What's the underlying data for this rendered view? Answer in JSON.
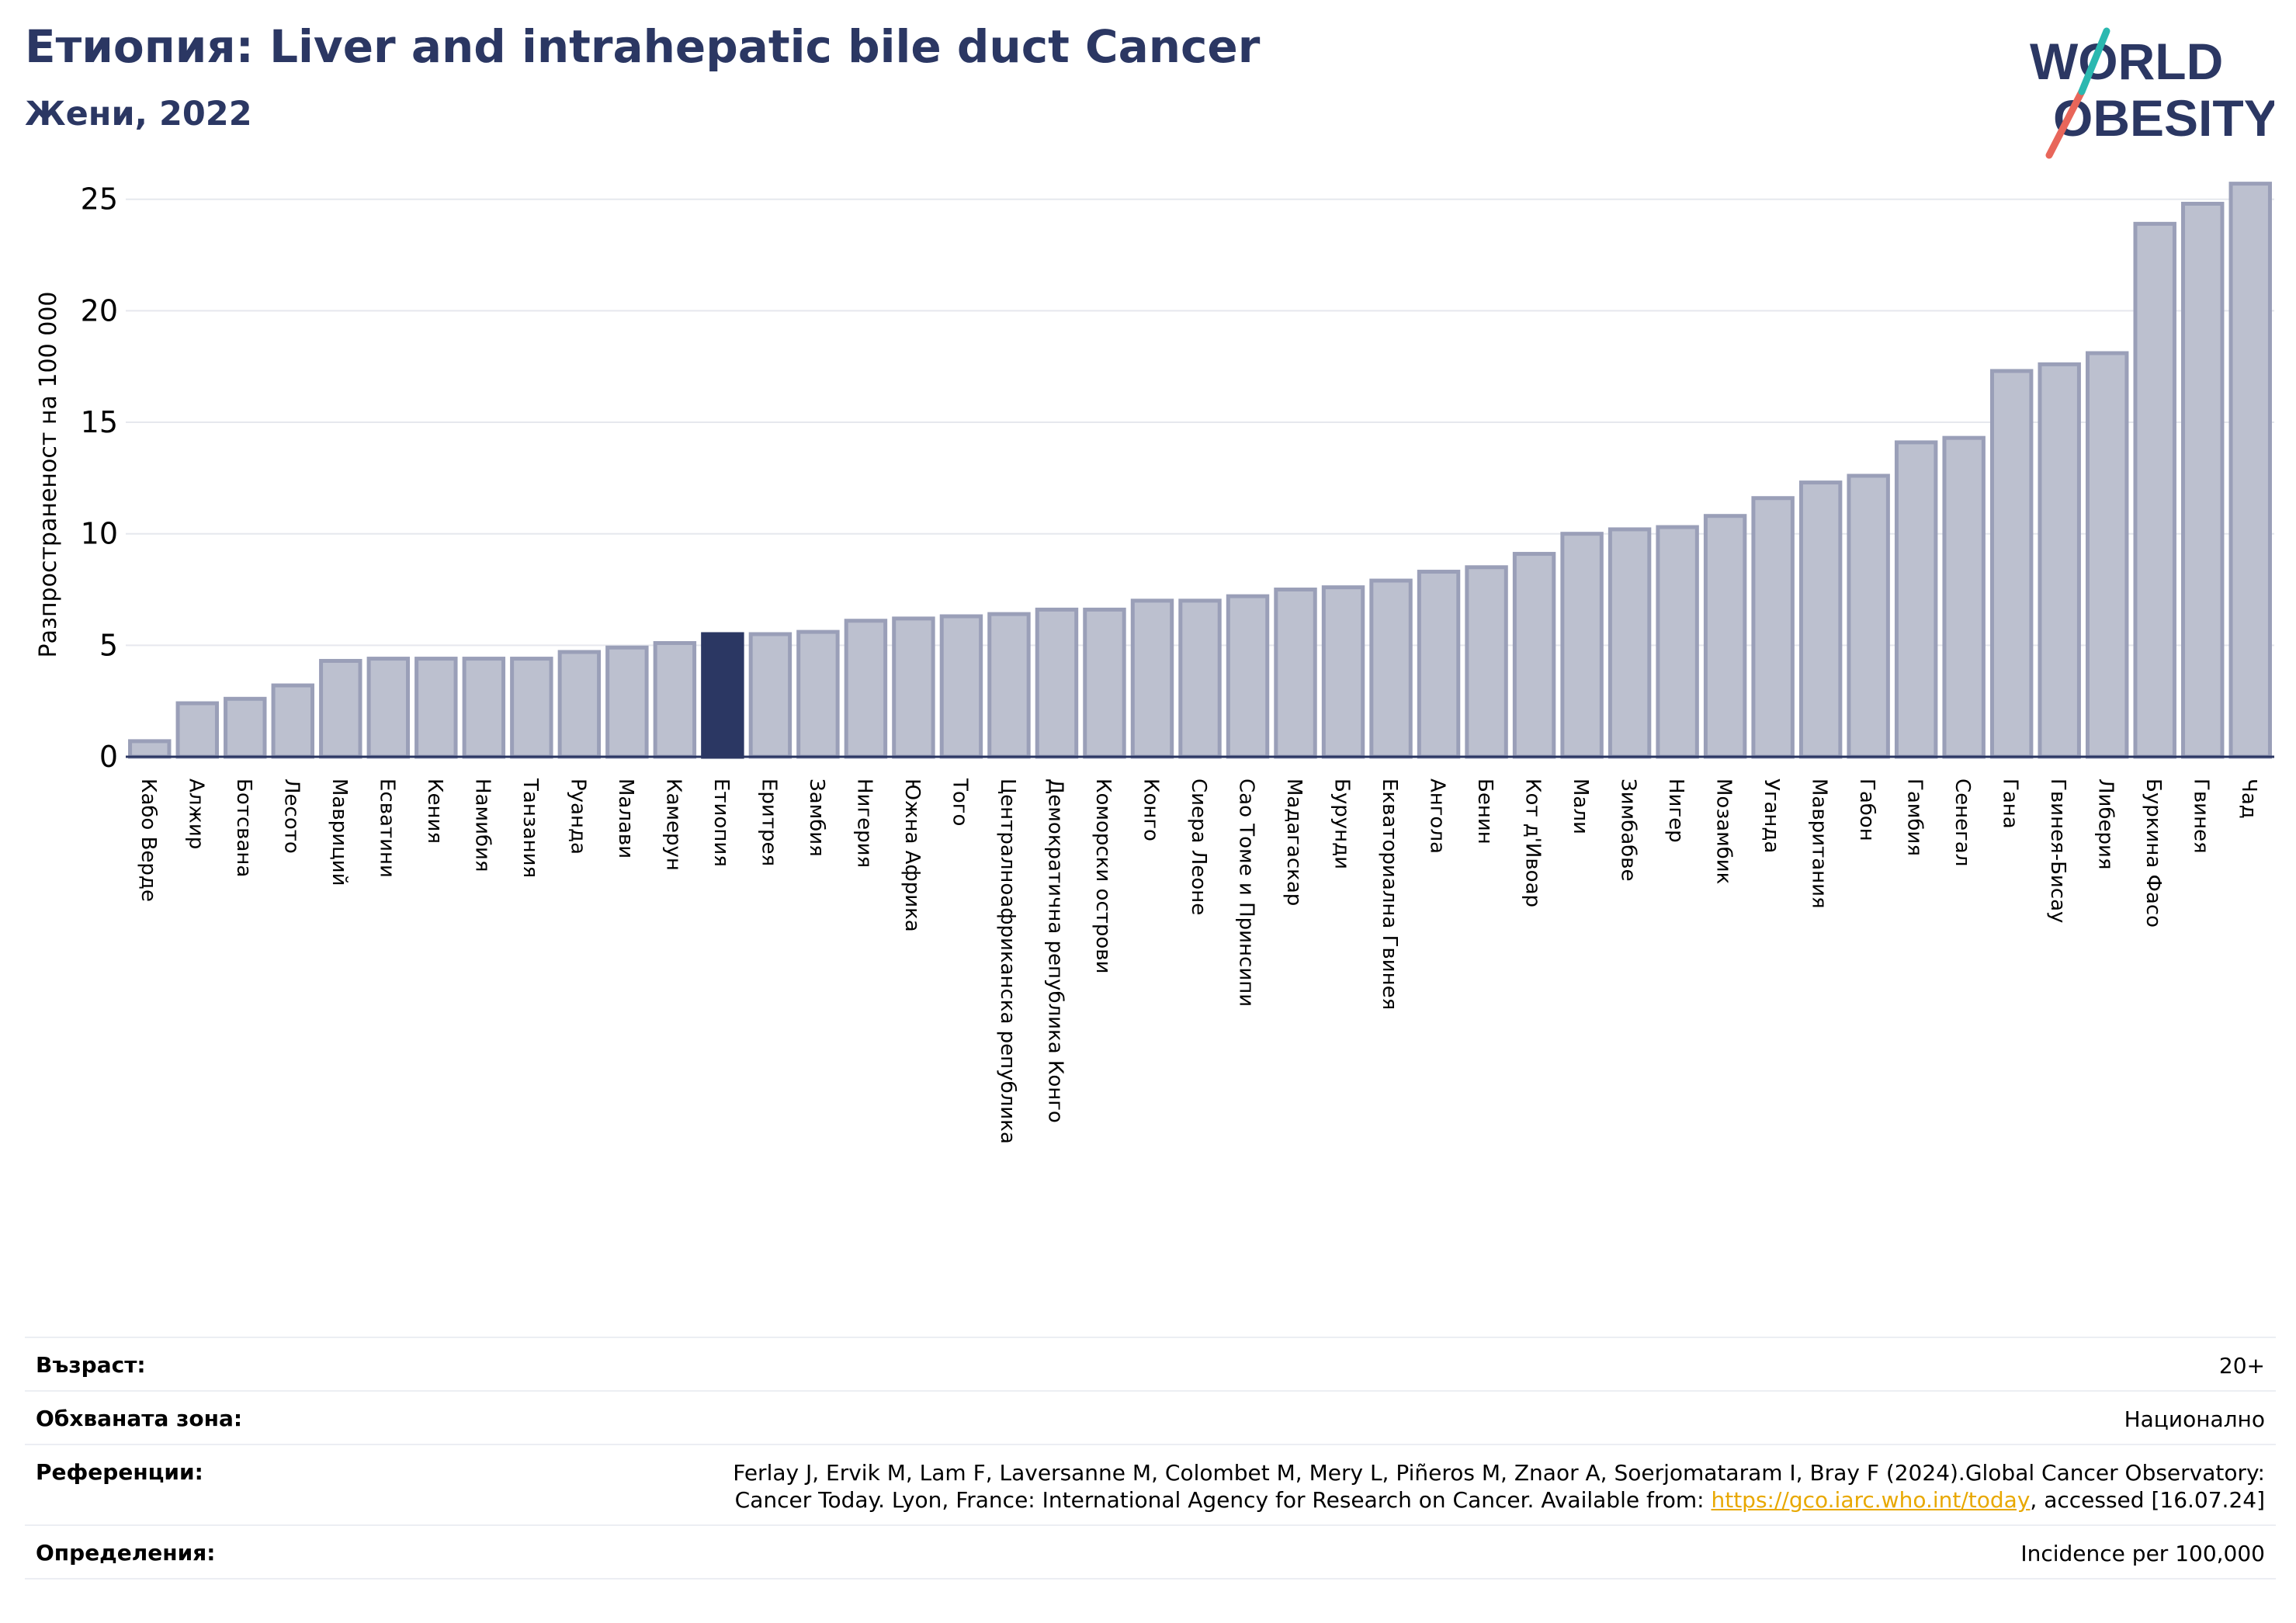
{
  "header": {
    "title": "Етиопия: Liver and intrahepatic bile duct Cancer",
    "subtitle": "Жени, 2022",
    "logo_line1": "WORLD",
    "logo_line2": "OBESITY"
  },
  "colors": {
    "bar": "#bcc0cf",
    "bar_edge": "#9a9fb8",
    "highlight": "#2b3763",
    "title": "#2b3763",
    "link": "#e8a800"
  },
  "chart_data": {
    "type": "bar",
    "ylabel": "Разпространеност  на 100 000",
    "ylim": [
      0,
      26
    ],
    "yticks": [
      0,
      5,
      10,
      15,
      20,
      25
    ],
    "grid": true,
    "highlight": "Етиопия",
    "categories": [
      "Кабо Верде",
      "Алжир",
      "Ботсвана",
      "Лесото",
      "Мавриций",
      "Есватини",
      "Кения",
      "Намибия",
      "Танзания",
      "Руанда",
      "Малави",
      "Камерун",
      "Етиопия",
      "Еритрея",
      "Замбия",
      "Нигерия",
      "Южна Африка",
      "Того",
      "Централноафриканска република",
      "Демократична република Конго",
      "Коморски острови",
      "Конго",
      "Сиера Леоне",
      "Сао Томе и Принсипи",
      "Мадагаскар",
      "Бурунди",
      "Екваториална Гвинея",
      "Ангола",
      "Бенин",
      "Кот д'Ивоар",
      "Мали",
      "Зимбабве",
      "Нигер",
      "Мозамбик",
      "Уганда",
      "Мавритания",
      "Габон",
      "Гамбия",
      "Сенегал",
      "Гана",
      "Гвинея-Бисау",
      "Либерия",
      "Буркина Фасо",
      "Гвинея",
      "Чад"
    ],
    "values": [
      0.7,
      2.4,
      2.6,
      3.2,
      4.3,
      4.4,
      4.4,
      4.4,
      4.4,
      4.7,
      4.9,
      5.1,
      5.5,
      5.5,
      5.6,
      6.1,
      6.2,
      6.3,
      6.4,
      6.6,
      6.6,
      7.0,
      7.0,
      7.2,
      7.5,
      7.6,
      7.9,
      8.3,
      8.5,
      9.1,
      10.0,
      10.2,
      10.3,
      10.8,
      11.6,
      12.3,
      12.6,
      14.1,
      14.3,
      17.3,
      17.6,
      18.1,
      23.9,
      24.8,
      25.7
    ]
  },
  "info": {
    "age_label": "Възраст:",
    "age_value": "20+",
    "area_label": "Обхваната зона:",
    "area_value": "Национално",
    "ref_label": "Референции:",
    "ref_line1": "Ferlay J, Ervik M, Lam F, Laversanne M, Colombet M, Mery L, Piñeros M, Znaor A, Soerjomataram I, Bray F (2024).Global Cancer Observatory:",
    "ref_line2_pre": "Cancer Today. Lyon, France: International Agency for Research on Cancer. Available from: ",
    "ref_link": "https://gco.iarc.who.int/today",
    "ref_line2_post": ", accessed [16.07.24]",
    "def_label": "Определения:",
    "def_value": "Incidence per 100,000"
  }
}
